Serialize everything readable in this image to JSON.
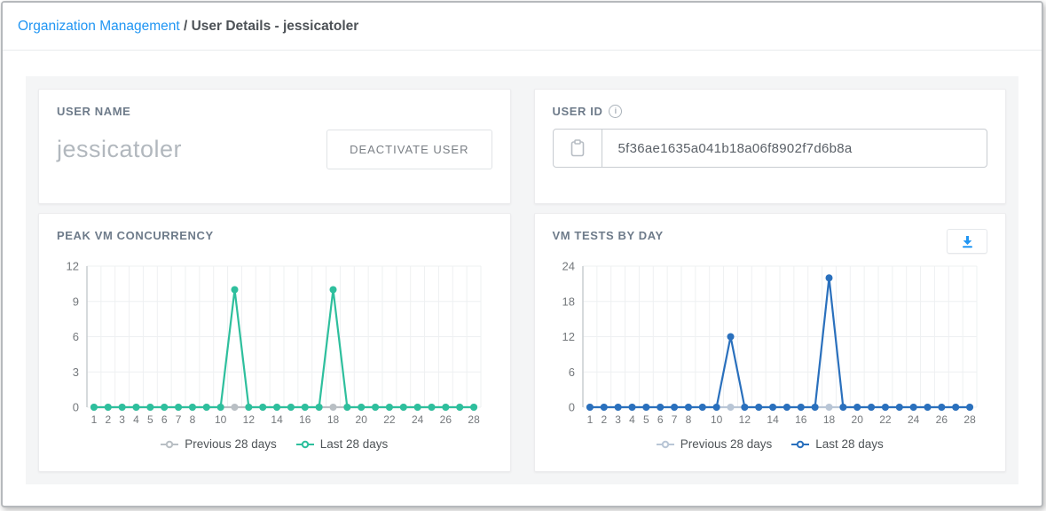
{
  "breadcrumb": {
    "link": "Organization Management",
    "separator": " / ",
    "current": "User Details - jessicatoler"
  },
  "user_name_card": {
    "label": "USER NAME",
    "value": "jessicatoler",
    "deactivate_label": "DEACTIVATE USER"
  },
  "user_id_card": {
    "label": "USER ID",
    "info_icon": "i",
    "value": "5f36ae1635a041b18a06f8902f7d6b8a"
  },
  "colors": {
    "link_blue": "#2196f3",
    "teal_series": "#2ebf9d",
    "blue_series": "#2a70bd",
    "gray_series": "#b9bfc4",
    "gray_blue_series": "#b9c6d6",
    "download_icon": "#2196f3"
  },
  "chart_data": [
    {
      "type": "line",
      "title": "PEAK VM CONCURRENCY",
      "x": [
        1,
        2,
        3,
        4,
        5,
        6,
        7,
        8,
        9,
        10,
        11,
        12,
        13,
        14,
        15,
        16,
        17,
        18,
        19,
        20,
        21,
        22,
        23,
        24,
        25,
        26,
        27,
        28
      ],
      "xticks": [
        1,
        2,
        3,
        4,
        5,
        6,
        7,
        8,
        10,
        12,
        14,
        16,
        18,
        20,
        22,
        24,
        26,
        28
      ],
      "ylim": [
        0,
        12
      ],
      "yticks": [
        0,
        3,
        6,
        9,
        12
      ],
      "grid": true,
      "legend_position": "bottom",
      "series": [
        {
          "name": "Previous 28 days",
          "color": "#b9bfc4",
          "values": [
            0,
            0,
            0,
            0,
            0,
            0,
            0,
            0,
            0,
            0,
            0,
            0,
            0,
            0,
            0,
            0,
            0,
            0,
            0,
            0,
            0,
            0,
            0,
            0,
            0,
            0,
            0,
            0
          ]
        },
        {
          "name": "Last 28 days",
          "color": "#2ebf9d",
          "values": [
            0,
            0,
            0,
            0,
            0,
            0,
            0,
            0,
            0,
            0,
            10,
            0,
            0,
            0,
            0,
            0,
            0,
            10,
            0,
            0,
            0,
            0,
            0,
            0,
            0,
            0,
            0,
            0
          ]
        }
      ]
    },
    {
      "type": "line",
      "title": "VM TESTS BY DAY",
      "x": [
        1,
        2,
        3,
        4,
        5,
        6,
        7,
        8,
        9,
        10,
        11,
        12,
        13,
        14,
        15,
        16,
        17,
        18,
        19,
        20,
        21,
        22,
        23,
        24,
        25,
        26,
        27,
        28
      ],
      "xticks": [
        1,
        2,
        3,
        4,
        5,
        6,
        7,
        8,
        10,
        12,
        14,
        16,
        18,
        20,
        22,
        24,
        26,
        28
      ],
      "ylim": [
        0,
        24
      ],
      "yticks": [
        0,
        6,
        12,
        18,
        24
      ],
      "grid": true,
      "legend_position": "bottom",
      "series": [
        {
          "name": "Previous 28 days",
          "color": "#b9c6d6",
          "values": [
            0,
            0,
            0,
            0,
            0,
            0,
            0,
            0,
            0,
            0,
            0,
            0,
            0,
            0,
            0,
            0,
            0,
            0,
            0,
            0,
            0,
            0,
            0,
            0,
            0,
            0,
            0,
            0
          ]
        },
        {
          "name": "Last 28 days",
          "color": "#2a70bd",
          "values": [
            0,
            0,
            0,
            0,
            0,
            0,
            0,
            0,
            0,
            0,
            12,
            0,
            0,
            0,
            0,
            0,
            0,
            22,
            0,
            0,
            0,
            0,
            0,
            0,
            0,
            0,
            0,
            0
          ]
        }
      ]
    }
  ]
}
